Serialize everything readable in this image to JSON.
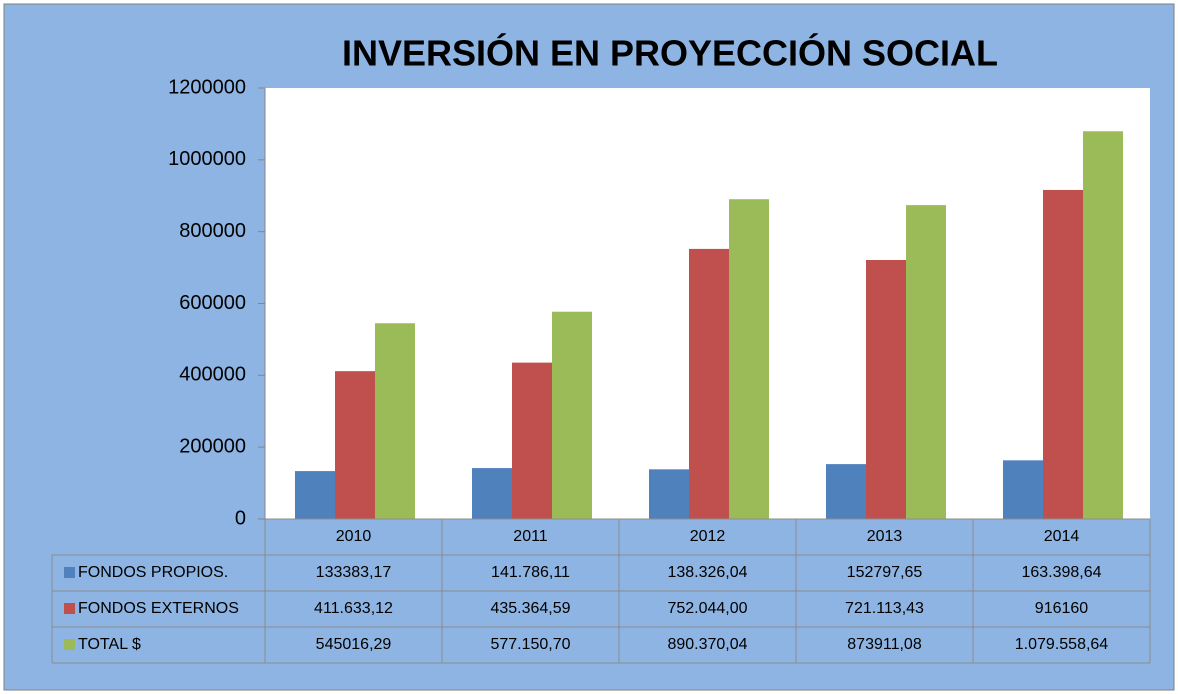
{
  "chart_data": {
    "type": "bar",
    "title": "INVERSIÓN EN PROYECCIÓN SOCIAL",
    "categories": [
      "2010",
      "2011",
      "2012",
      "2013",
      "2014"
    ],
    "series": [
      {
        "name": "FONDOS PROPIOS.",
        "color": "#4f81bd",
        "values": [
          133383.17,
          141786.11,
          138326.04,
          152797.65,
          163398.64
        ],
        "value_labels": [
          "133383,17",
          "141.786,11",
          "138.326,04",
          "152797,65",
          "163.398,64"
        ]
      },
      {
        "name": "FONDOS EXTERNOS",
        "color": "#c0504d",
        "values": [
          411633.12,
          435364.59,
          752044.0,
          721113.43,
          916160
        ],
        "value_labels": [
          "411.633,12",
          "435.364,59",
          "752.044,00",
          "721.113,43",
          "916160"
        ]
      },
      {
        "name": "TOTAL $",
        "color": "#9bbb59",
        "values": [
          545016.29,
          577150.7,
          890370.04,
          873911.08,
          1079558.64
        ],
        "value_labels": [
          "545016,29",
          "577.150,70",
          "890.370,04",
          "873911,08",
          "1.079.558,64"
        ]
      }
    ],
    "ylim": [
      0,
      1200000
    ],
    "yticks": [
      0,
      200000,
      400000,
      600000,
      800000,
      1000000,
      1200000
    ],
    "grid": false
  }
}
